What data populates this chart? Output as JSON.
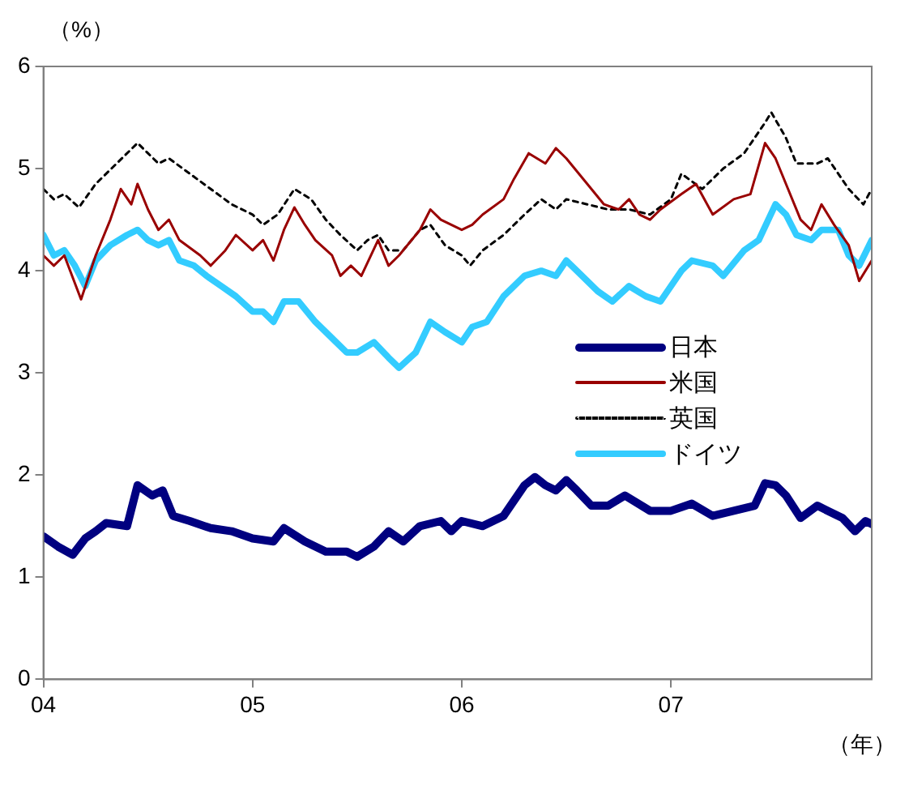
{
  "chart_data": {
    "type": "line",
    "ylabel": "（%）",
    "xlabel": "（年）",
    "xlim": [
      2004,
      2007.96
    ],
    "xticks": [
      {
        "value": 2004,
        "label": "04"
      },
      {
        "value": 2005,
        "label": "05"
      },
      {
        "value": 2006,
        "label": "06"
      },
      {
        "value": 2007,
        "label": "07"
      }
    ],
    "ylim": [
      0,
      6
    ],
    "yticks": [
      0,
      1,
      2,
      3,
      4,
      5,
      6
    ],
    "grid": false,
    "legend": "right",
    "marker": "none",
    "series": [
      {
        "name": "日本",
        "color": "#000080",
        "line_style": "solid",
        "x": [
          2004.0,
          2004.07,
          2004.14,
          2004.2,
          2004.25,
          2004.3,
          2004.4,
          2004.45,
          2004.52,
          2004.57,
          2004.62,
          2004.7,
          2004.8,
          2004.9,
          2005.0,
          2005.1,
          2005.15,
          2005.25,
          2005.35,
          2005.45,
          2005.5,
          2005.58,
          2005.65,
          2005.72,
          2005.8,
          2005.9,
          2005.95,
          2006.0,
          2006.1,
          2006.2,
          2006.3,
          2006.35,
          2006.4,
          2006.45,
          2006.5,
          2006.55,
          2006.62,
          2006.7,
          2006.78,
          2006.9,
          2007.0,
          2007.1,
          2007.2,
          2007.3,
          2007.4,
          2007.45,
          2007.5,
          2007.55,
          2007.62,
          2007.7,
          2007.75,
          2007.82,
          2007.88,
          2007.93,
          2007.96
        ],
        "values": [
          1.4,
          1.3,
          1.22,
          1.38,
          1.45,
          1.53,
          1.5,
          1.9,
          1.8,
          1.85,
          1.6,
          1.55,
          1.48,
          1.45,
          1.38,
          1.35,
          1.48,
          1.35,
          1.25,
          1.25,
          1.2,
          1.3,
          1.45,
          1.35,
          1.5,
          1.55,
          1.45,
          1.55,
          1.5,
          1.6,
          1.9,
          1.98,
          1.9,
          1.85,
          1.95,
          1.85,
          1.7,
          1.7,
          1.8,
          1.65,
          1.65,
          1.72,
          1.6,
          1.65,
          1.7,
          1.92,
          1.9,
          1.8,
          1.58,
          1.7,
          1.65,
          1.58,
          1.45,
          1.55,
          1.52
        ]
      },
      {
        "name": "米国",
        "color": "#990000",
        "line_style": "solid",
        "x": [
          2004.0,
          2004.05,
          2004.1,
          2004.18,
          2004.25,
          2004.32,
          2004.37,
          2004.42,
          2004.45,
          2004.5,
          2004.55,
          2004.6,
          2004.65,
          2004.75,
          2004.8,
          2004.87,
          2004.92,
          2005.0,
          2005.05,
          2005.1,
          2005.15,
          2005.2,
          2005.25,
          2005.3,
          2005.38,
          2005.42,
          2005.47,
          2005.52,
          2005.6,
          2005.65,
          2005.7,
          2005.8,
          2005.85,
          2005.9,
          2006.0,
          2006.05,
          2006.1,
          2006.2,
          2006.25,
          2006.32,
          2006.4,
          2006.45,
          2006.5,
          2006.6,
          2006.68,
          2006.75,
          2006.8,
          2006.85,
          2006.9,
          2006.95,
          2007.05,
          2007.12,
          2007.2,
          2007.3,
          2007.38,
          2007.45,
          2007.5,
          2007.55,
          2007.62,
          2007.67,
          2007.72,
          2007.78,
          2007.85,
          2007.9,
          2007.96
        ],
        "values": [
          4.15,
          4.05,
          4.15,
          3.72,
          4.15,
          4.5,
          4.8,
          4.65,
          4.85,
          4.6,
          4.4,
          4.5,
          4.3,
          4.15,
          4.05,
          4.2,
          4.35,
          4.2,
          4.3,
          4.1,
          4.4,
          4.62,
          4.45,
          4.3,
          4.15,
          3.95,
          4.05,
          3.95,
          4.3,
          4.05,
          4.15,
          4.4,
          4.6,
          4.5,
          4.4,
          4.45,
          4.55,
          4.7,
          4.9,
          5.15,
          5.05,
          5.2,
          5.1,
          4.85,
          4.65,
          4.6,
          4.7,
          4.55,
          4.5,
          4.6,
          4.75,
          4.85,
          4.55,
          4.7,
          4.75,
          5.25,
          5.1,
          4.85,
          4.5,
          4.4,
          4.65,
          4.45,
          4.25,
          3.9,
          4.1
        ]
      },
      {
        "name": "英国",
        "color": "#000000",
        "line_style": "dotted",
        "x": [
          2004.0,
          2004.05,
          2004.1,
          2004.17,
          2004.25,
          2004.35,
          2004.45,
          2004.5,
          2004.55,
          2004.6,
          2004.7,
          2004.8,
          2004.9,
          2005.0,
          2005.05,
          2005.12,
          2005.2,
          2005.28,
          2005.35,
          2005.42,
          2005.5,
          2005.55,
          2005.6,
          2005.65,
          2005.72,
          2005.8,
          2005.85,
          2005.92,
          2006.0,
          2006.04,
          2006.1,
          2006.2,
          2006.3,
          2006.38,
          2006.45,
          2006.5,
          2006.6,
          2006.7,
          2006.8,
          2006.9,
          2007.0,
          2007.05,
          2007.15,
          2007.25,
          2007.35,
          2007.45,
          2007.48,
          2007.55,
          2007.6,
          2007.7,
          2007.75,
          2007.85,
          2007.92,
          2007.96
        ],
        "values": [
          4.8,
          4.7,
          4.75,
          4.62,
          4.85,
          5.05,
          5.25,
          5.15,
          5.05,
          5.1,
          4.95,
          4.8,
          4.65,
          4.55,
          4.45,
          4.55,
          4.8,
          4.7,
          4.5,
          4.35,
          4.2,
          4.3,
          4.35,
          4.2,
          4.2,
          4.4,
          4.45,
          4.25,
          4.15,
          4.05,
          4.2,
          4.35,
          4.55,
          4.7,
          4.6,
          4.7,
          4.65,
          4.6,
          4.6,
          4.55,
          4.7,
          4.95,
          4.8,
          5.0,
          5.15,
          5.45,
          5.55,
          5.3,
          5.05,
          5.05,
          5.1,
          4.8,
          4.65,
          4.8
        ]
      },
      {
        "name": "ドイツ",
        "color": "#33ccff",
        "line_style": "solid",
        "x": [
          2004.0,
          2004.05,
          2004.1,
          2004.15,
          2004.2,
          2004.25,
          2004.32,
          2004.4,
          2004.45,
          2004.5,
          2004.55,
          2004.6,
          2004.65,
          2004.72,
          2004.78,
          2004.85,
          2004.92,
          2005.0,
          2005.05,
          2005.1,
          2005.15,
          2005.22,
          2005.3,
          2005.4,
          2005.45,
          2005.5,
          2005.58,
          2005.65,
          2005.7,
          2005.78,
          2005.85,
          2005.92,
          2006.0,
          2006.05,
          2006.12,
          2006.2,
          2006.3,
          2006.38,
          2006.45,
          2006.5,
          2006.55,
          2006.65,
          2006.72,
          2006.8,
          2006.88,
          2006.95,
          2007.05,
          2007.1,
          2007.2,
          2007.25,
          2007.35,
          2007.42,
          2007.5,
          2007.55,
          2007.6,
          2007.67,
          2007.72,
          2007.8,
          2007.85,
          2007.9,
          2007.96
        ],
        "values": [
          4.35,
          4.15,
          4.2,
          4.05,
          3.85,
          4.1,
          4.25,
          4.35,
          4.4,
          4.3,
          4.25,
          4.3,
          4.1,
          4.05,
          3.95,
          3.85,
          3.75,
          3.6,
          3.6,
          3.5,
          3.7,
          3.7,
          3.5,
          3.3,
          3.2,
          3.2,
          3.3,
          3.15,
          3.05,
          3.2,
          3.5,
          3.4,
          3.3,
          3.45,
          3.5,
          3.75,
          3.95,
          4.0,
          3.95,
          4.1,
          4.0,
          3.8,
          3.7,
          3.85,
          3.75,
          3.7,
          4.0,
          4.1,
          4.05,
          3.95,
          4.2,
          4.3,
          4.65,
          4.55,
          4.35,
          4.3,
          4.4,
          4.4,
          4.15,
          4.05,
          4.3
        ]
      }
    ]
  }
}
